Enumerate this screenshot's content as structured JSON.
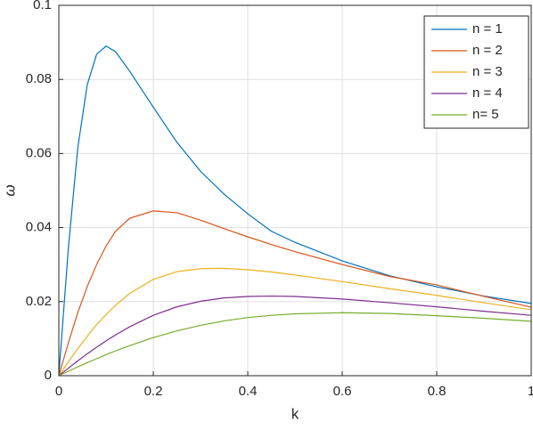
{
  "chart_data": {
    "type": "line",
    "x_label": "k",
    "y_label": "ω",
    "x": [
      0,
      0.02,
      0.04,
      0.06,
      0.08,
      0.1,
      0.12,
      0.15,
      0.2,
      0.25,
      0.3,
      0.35,
      0.4,
      0.45,
      0.5,
      0.6,
      0.7,
      0.8,
      0.9,
      1
    ],
    "series": [
      {
        "name": "n = 1",
        "color": "#0072BD",
        "values": [
          0,
          0.0342,
          0.0614,
          0.0785,
          0.0868,
          0.089,
          0.0875,
          0.0822,
          0.0725,
          0.063,
          0.0552,
          0.049,
          0.0437,
          0.039,
          0.036,
          0.031,
          0.027,
          0.024,
          0.0215,
          0.0195
        ]
      },
      {
        "name": "n = 2",
        "color": "#D95319",
        "values": [
          0,
          0.0088,
          0.017,
          0.024,
          0.03,
          0.035,
          0.039,
          0.0425,
          0.0445,
          0.044,
          0.042,
          0.0397,
          0.0375,
          0.0354,
          0.0335,
          0.03,
          0.0268,
          0.0245,
          0.0214,
          0.0185
        ]
      },
      {
        "name": "n = 3",
        "color": "#EDB120",
        "values": [
          0,
          0.0037,
          0.0073,
          0.0106,
          0.0138,
          0.0165,
          0.019,
          0.0222,
          0.026,
          0.0281,
          0.0289,
          0.029,
          0.0286,
          0.028,
          0.0272,
          0.0254,
          0.0235,
          0.0217,
          0.0197,
          0.0178
        ]
      },
      {
        "name": "n = 4",
        "color": "#7E2F8E",
        "values": [
          0,
          0.002,
          0.004,
          0.0059,
          0.0077,
          0.0094,
          0.011,
          0.0132,
          0.0163,
          0.0186,
          0.0201,
          0.021,
          0.0214,
          0.0215,
          0.0214,
          0.0207,
          0.0197,
          0.0186,
          0.0174,
          0.0163
        ]
      },
      {
        "name": "n= 5",
        "color": "#77AC30",
        "values": [
          0,
          0.0012,
          0.0024,
          0.0035,
          0.0046,
          0.0057,
          0.0067,
          0.0081,
          0.0103,
          0.0121,
          0.0136,
          0.0148,
          0.0157,
          0.0163,
          0.0167,
          0.017,
          0.0168,
          0.0162,
          0.0155,
          0.0147
        ]
      }
    ],
    "xlim": [
      0,
      1
    ],
    "xticks": [
      0,
      0.2,
      0.4,
      0.6,
      0.8,
      1
    ],
    "ylim": [
      0,
      0.1
    ],
    "yticks": [
      0,
      0.02,
      0.04,
      0.06,
      0.08,
      0.1
    ],
    "grid": true,
    "legend_position": "top-right"
  }
}
